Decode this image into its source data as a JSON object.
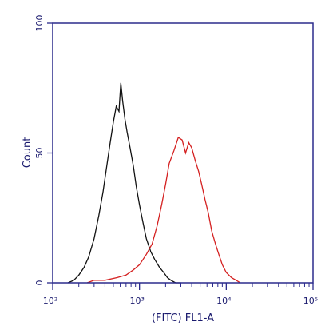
{
  "chart_data": {
    "type": "line",
    "title": "",
    "xlabel": "(FITC) FL1-A",
    "ylabel": "Count",
    "xscale": "log",
    "xlim": [
      100,
      100000
    ],
    "ylim": [
      0,
      100
    ],
    "x_tick_labels": [
      "10²",
      "10³",
      "10⁴",
      "10⁵"
    ],
    "y_tick_labels": [
      "0",
      "50",
      "100"
    ],
    "grid": false,
    "legend": "none",
    "colors": {
      "frame": "#2b2b8c",
      "text": "#1a1a6e",
      "series_black": "#111111",
      "series_red": "#d42020"
    },
    "series": [
      {
        "color": "#111111",
        "x": [
          150,
          175,
          200,
          230,
          260,
          300,
          340,
          380,
          420,
          460,
          500,
          540,
          580,
          610,
          640,
          680,
          720,
          780,
          850,
          920,
          1000,
          1100,
          1200,
          1350,
          1500,
          1700,
          1900,
          2100,
          2300,
          2600,
          3000
        ],
        "y": [
          0,
          1,
          3,
          6,
          10,
          17,
          26,
          35,
          45,
          54,
          62,
          68,
          66,
          77,
          70,
          63,
          58,
          52,
          45,
          37,
          30,
          23,
          17,
          12,
          9,
          6,
          4,
          2,
          1,
          0,
          0
        ]
      },
      {
        "color": "#d42020",
        "x": [
          250,
          300,
          400,
          550,
          700,
          850,
          1000,
          1200,
          1400,
          1600,
          1800,
          2000,
          2200,
          2500,
          2800,
          3100,
          3400,
          3700,
          4000,
          4400,
          4800,
          5200,
          5700,
          6200,
          6800,
          7500,
          8200,
          9000,
          10000,
          11500,
          13000,
          14500
        ],
        "y": [
          0,
          1,
          1,
          2,
          3,
          5,
          7,
          11,
          15,
          22,
          30,
          38,
          46,
          51,
          56,
          55,
          50,
          54,
          52,
          47,
          43,
          38,
          32,
          27,
          20,
          15,
          11,
          7,
          4,
          2,
          1,
          0
        ]
      }
    ]
  }
}
